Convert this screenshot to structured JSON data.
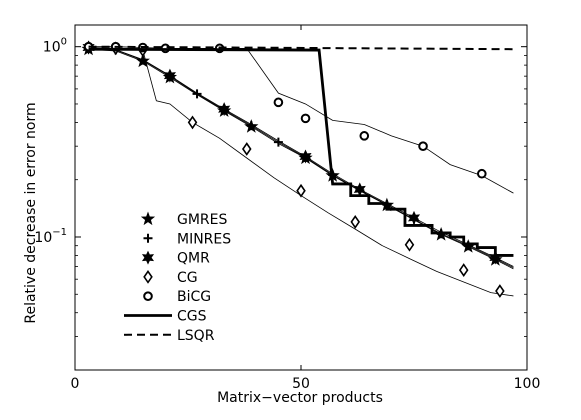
{
  "chart_data": {
    "type": "line",
    "xlabel": "Matrix−vector products",
    "ylabel": "Relative decrease in error norm",
    "xlim": [
      0,
      100
    ],
    "ylim": [
      0.02,
      1.3
    ],
    "yscale": "log",
    "grid": false,
    "legend_position": "lower-left",
    "x_ticks": [
      {
        "value": 0,
        "label": "0"
      },
      {
        "value": 50,
        "label": "50"
      },
      {
        "value": 100,
        "label": "100"
      }
    ],
    "y_ticks": [
      {
        "value": 1.0,
        "base": "10",
        "exp": "0"
      },
      {
        "value": 0.1,
        "base": "10",
        "exp": "−1"
      }
    ],
    "series": [
      {
        "name": "GMRES",
        "marker": "star5",
        "line": "thin",
        "x": [
          3,
          9,
          15,
          21,
          27,
          33,
          39,
          45,
          51,
          57,
          63,
          69,
          75,
          81,
          87,
          93,
          97
        ],
        "y": [
          0.97,
          0.95,
          0.84,
          0.69,
          0.56,
          0.46,
          0.38,
          0.31,
          0.26,
          0.21,
          0.175,
          0.147,
          0.123,
          0.103,
          0.089,
          0.076,
          0.068
        ],
        "marker_x": [
          3,
          15,
          21,
          33,
          39,
          51,
          57,
          69,
          81,
          87,
          93
        ],
        "marker_y": [
          0.97,
          0.84,
          0.69,
          0.46,
          0.38,
          0.26,
          0.21,
          0.147,
          0.103,
          0.089,
          0.076
        ]
      },
      {
        "name": "MINRES",
        "marker": "plus",
        "line": "thin",
        "x": [
          3,
          9,
          15,
          21,
          27,
          33,
          39,
          45,
          51,
          57,
          63,
          69,
          75,
          81,
          87,
          93,
          97
        ],
        "y": [
          0.98,
          0.96,
          0.85,
          0.7,
          0.565,
          0.465,
          0.385,
          0.315,
          0.262,
          0.212,
          0.176,
          0.148,
          0.124,
          0.104,
          0.09,
          0.077,
          0.069
        ],
        "marker_x": [
          3,
          9,
          15,
          21,
          27,
          33,
          39,
          45,
          51,
          57,
          63,
          69,
          75,
          81,
          87,
          93
        ],
        "marker_y": [
          0.98,
          0.96,
          0.85,
          0.7,
          0.565,
          0.465,
          0.385,
          0.315,
          0.262,
          0.212,
          0.176,
          0.148,
          0.124,
          0.104,
          0.09,
          0.077
        ]
      },
      {
        "name": "QMR",
        "marker": "star6",
        "line": "thin",
        "x": [
          3,
          9,
          15,
          21,
          27,
          33,
          39,
          45,
          51,
          57,
          63,
          69,
          75,
          81,
          87,
          93,
          97
        ],
        "y": [
          0.99,
          0.965,
          0.855,
          0.705,
          0.57,
          0.47,
          0.39,
          0.32,
          0.265,
          0.215,
          0.178,
          0.15,
          0.126,
          0.106,
          0.091,
          0.078,
          0.07
        ],
        "marker_x": [
          3,
          21,
          33,
          51,
          63,
          75,
          93
        ],
        "marker_y": [
          0.99,
          0.705,
          0.47,
          0.265,
          0.178,
          0.126,
          0.078
        ]
      },
      {
        "name": "CG",
        "marker": "diamond",
        "line": "thin",
        "x": [
          3,
          9,
          15,
          18,
          21,
          26,
          32,
          38,
          44,
          50,
          56,
          62,
          68,
          74,
          80,
          86,
          92,
          97
        ],
        "y": [
          0.99,
          0.98,
          0.96,
          0.52,
          0.5,
          0.4,
          0.33,
          0.26,
          0.205,
          0.165,
          0.134,
          0.11,
          0.09,
          0.077,
          0.066,
          0.058,
          0.051,
          0.049
        ],
        "marker_x": [
          3,
          9,
          15,
          26,
          38,
          50,
          62,
          74,
          86,
          94
        ],
        "marker_y": [
          0.99,
          0.98,
          0.96,
          0.4,
          0.29,
          0.175,
          0.12,
          0.091,
          0.067,
          0.052
        ]
      },
      {
        "name": "BiCG",
        "marker": "circle",
        "line": "thin",
        "x": [
          3,
          9,
          15,
          20,
          26,
          32,
          38,
          45,
          51,
          57,
          64,
          70,
          77,
          83,
          90,
          97
        ],
        "y": [
          1.0,
          1.0,
          0.99,
          0.98,
          0.98,
          0.98,
          0.98,
          0.57,
          0.5,
          0.41,
          0.39,
          0.34,
          0.3,
          0.24,
          0.21,
          0.17
        ],
        "marker_x": [
          3,
          9,
          15,
          20,
          32,
          45,
          51,
          64,
          77,
          90
        ],
        "marker_y": [
          1.0,
          1.0,
          0.99,
          0.98,
          0.98,
          0.51,
          0.42,
          0.34,
          0.3,
          0.215
        ]
      },
      {
        "name": "CGS",
        "marker": "none",
        "line": "thick",
        "x": [
          3,
          54,
          57,
          61,
          61,
          65,
          65,
          69,
          69,
          73,
          73,
          79,
          79,
          83,
          83,
          86,
          86,
          89,
          89,
          93,
          93,
          97
        ],
        "y": [
          0.97,
          0.96,
          0.19,
          0.19,
          0.165,
          0.165,
          0.15,
          0.15,
          0.14,
          0.14,
          0.115,
          0.115,
          0.105,
          0.105,
          0.1,
          0.1,
          0.092,
          0.092,
          0.088,
          0.088,
          0.08,
          0.08
        ]
      },
      {
        "name": "LSQR",
        "marker": "none",
        "line": "dashed",
        "x": [
          3,
          97
        ],
        "y": [
          1.0,
          0.97
        ]
      }
    ]
  }
}
